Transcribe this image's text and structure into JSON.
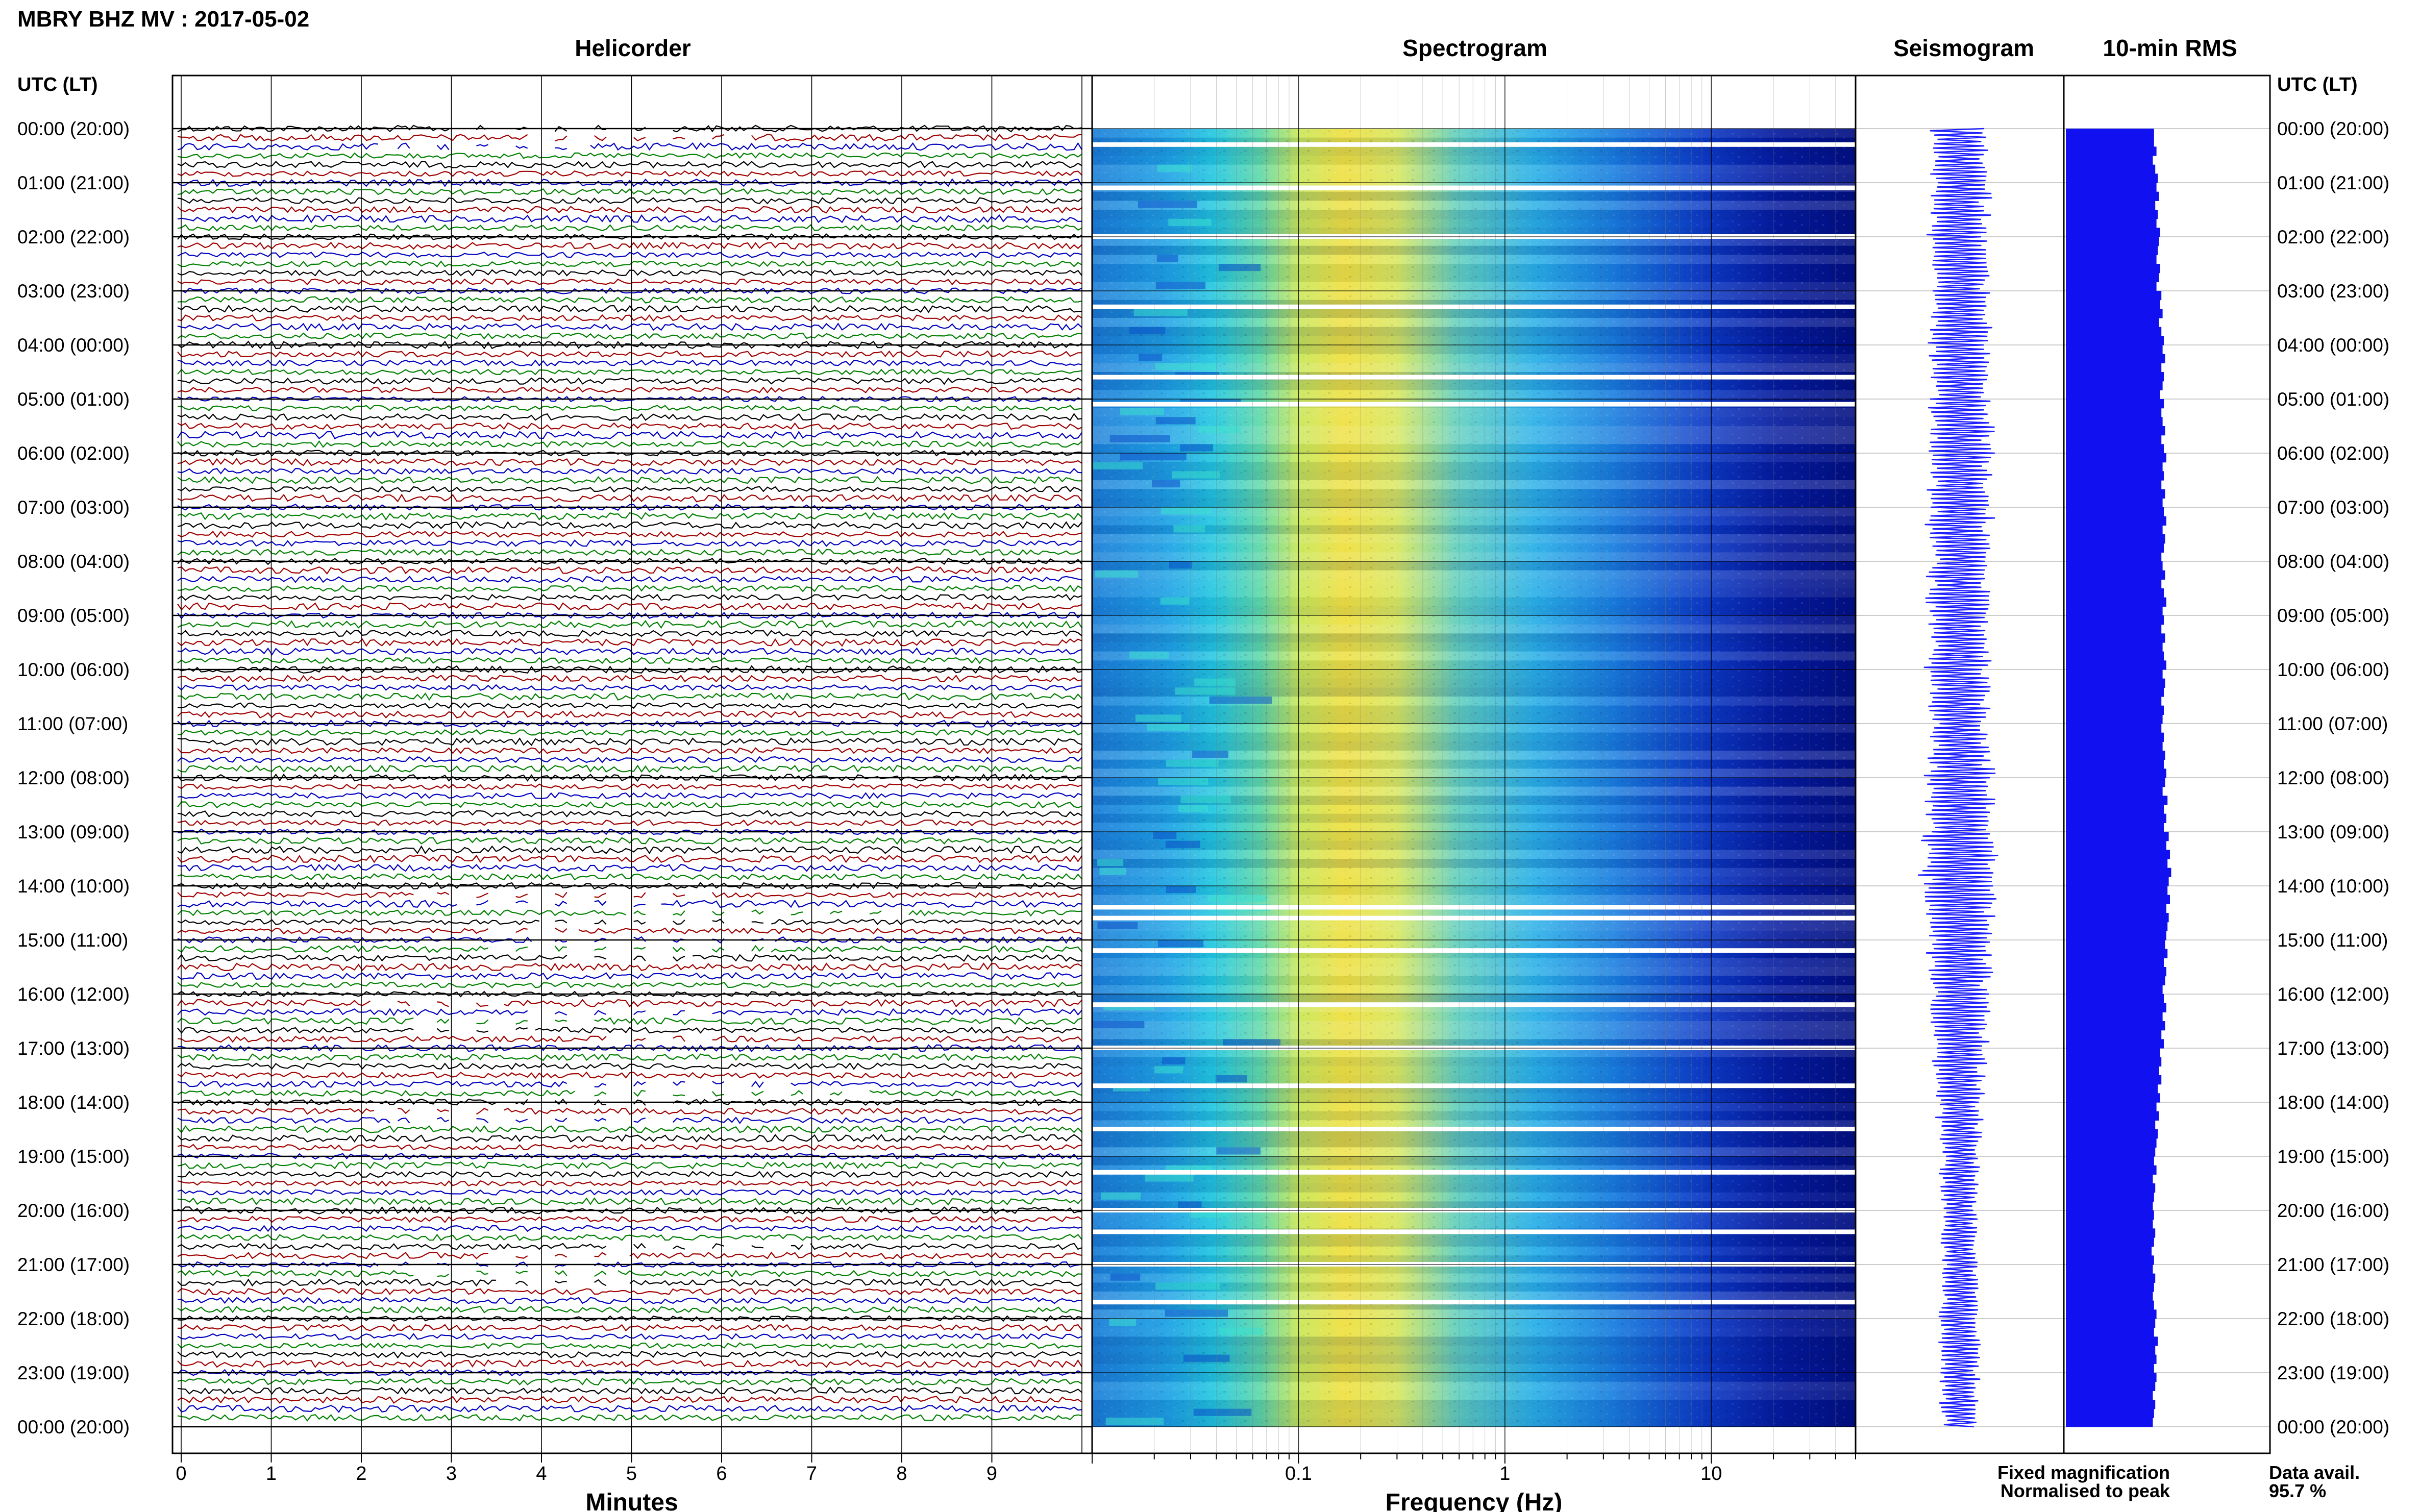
{
  "header": {
    "title": "MBRY BHZ MV : 2017-05-02",
    "utc_label_left": "UTC (LT)",
    "utc_label_right": "UTC (LT)"
  },
  "panels": {
    "helicorder": "Helicorder",
    "spectrogram": "Spectrogram",
    "seismogram": "Seismogram",
    "rms": "10-min RMS"
  },
  "time_labels": [
    "00:00 (20:00)",
    "01:00 (21:00)",
    "02:00 (22:00)",
    "03:00 (23:00)",
    "04:00 (00:00)",
    "05:00 (01:00)",
    "06:00 (02:00)",
    "07:00 (03:00)",
    "08:00 (04:00)",
    "09:00 (05:00)",
    "10:00 (06:00)",
    "11:00 (07:00)",
    "12:00 (08:00)",
    "13:00 (09:00)",
    "14:00 (10:00)",
    "15:00 (11:00)",
    "16:00 (12:00)",
    "17:00 (13:00)",
    "18:00 (14:00)",
    "19:00 (15:00)",
    "20:00 (16:00)",
    "21:00 (17:00)",
    "22:00 (18:00)",
    "23:00 (19:00)",
    "00:00 (20:00)"
  ],
  "axes": {
    "minutes_label": "Minutes",
    "minutes_ticks": [
      "0",
      "1",
      "2",
      "3",
      "4",
      "5",
      "6",
      "7",
      "8",
      "9"
    ],
    "frequency_label": "Frequency (Hz)",
    "frequency_ticks": [
      "0.1",
      "1",
      "10"
    ]
  },
  "legend": {
    "fixed": "Fixed magnification",
    "fixed_color": "#1010ff",
    "normalised": "Normalised to peak",
    "normalised_color": "#e01010"
  },
  "availability": {
    "label": "Data avail.",
    "value": "95.7 %"
  },
  "colors": {
    "trace_cycle": [
      "#000000",
      "#a00000",
      "#0000c0",
      "#008000"
    ],
    "rms_fill": "#1010f0",
    "seismogram": "#2020ff"
  },
  "chart_data": {
    "type": "heatmap",
    "station": "MBRY BHZ MV",
    "date": "2017-05-02",
    "helicorder": {
      "x_unit": "Minutes",
      "xlim": [
        0,
        10
      ],
      "rows_per_hour": 6,
      "hours": 24,
      "trace_colors": [
        "black",
        "dark red",
        "blue",
        "green"
      ],
      "gaps_approx_utc_hours": [
        0,
        14.5,
        15,
        16.5,
        18,
        21
      ]
    },
    "spectrogram": {
      "x_unit": "Frequency (Hz)",
      "x_scale": "log",
      "xlim": [
        0.01,
        50
      ],
      "peak_energy_hz": [
        0.15,
        0.6
      ],
      "colormap": "jet",
      "gaps_approx_utc_hours": [
        0.3,
        1.1,
        2.0,
        3.3,
        4.6,
        5.1,
        14.4,
        14.6,
        15.2,
        16.2,
        17.0,
        17.7,
        18.5,
        19.3,
        20.0,
        20.4,
        21.0,
        21.7
      ]
    },
    "rms_10min": {
      "unit": "relative",
      "values": [
        0.72,
        0.72,
        0.74,
        0.71,
        0.73,
        0.75,
        0.74,
        0.76,
        0.73,
        0.75,
        0.74,
        0.77,
        0.76,
        0.75,
        0.74,
        0.77,
        0.76,
        0.74,
        0.78,
        0.77,
        0.79,
        0.76,
        0.78,
        0.8,
        0.79,
        0.81,
        0.78,
        0.8,
        0.79,
        0.77,
        0.8,
        0.78,
        0.79,
        0.81,
        0.78,
        0.8,
        0.82,
        0.79,
        0.8,
        0.78,
        0.81,
        0.79,
        0.8,
        0.82,
        0.79,
        0.81,
        0.8,
        0.78,
        0.79,
        0.81,
        0.78,
        0.8,
        0.82,
        0.79,
        0.8,
        0.78,
        0.81,
        0.79,
        0.8,
        0.82,
        0.79,
        0.81,
        0.8,
        0.78,
        0.8,
        0.79,
        0.78,
        0.8,
        0.79,
        0.81,
        0.8,
        0.82,
        0.81,
        0.79,
        0.83,
        0.8,
        0.82,
        0.8,
        0.84,
        0.82,
        0.85,
        0.83,
        0.86,
        0.84,
        0.83,
        0.85,
        0.82,
        0.84,
        0.83,
        0.82,
        0.81,
        0.83,
        0.8,
        0.82,
        0.81,
        0.79,
        0.8,
        0.82,
        0.79,
        0.81,
        0.78,
        0.8,
        0.77,
        0.78,
        0.76,
        0.78,
        0.75,
        0.77,
        0.74,
        0.76,
        0.73,
        0.75,
        0.74,
        0.73,
        0.72,
        0.74,
        0.71,
        0.73,
        0.72,
        0.71,
        0.72,
        0.71,
        0.73,
        0.72,
        0.7,
        0.72,
        0.71,
        0.73,
        0.72,
        0.71,
        0.72,
        0.74,
        0.73,
        0.72,
        0.75,
        0.73,
        0.74,
        0.72,
        0.74,
        0.73,
        0.71,
        0.73,
        0.72,
        0.71
      ]
    },
    "seismogram": {
      "relative_amplitude_per_10min": [
        0.22,
        0.2,
        0.23,
        0.19,
        0.21,
        0.24,
        0.22,
        0.26,
        0.2,
        0.23,
        0.21,
        0.25,
        0.22,
        0.2,
        0.21,
        0.24,
        0.22,
        0.2,
        0.23,
        0.21,
        0.25,
        0.22,
        0.24,
        0.26,
        0.23,
        0.25,
        0.21,
        0.24,
        0.22,
        0.2,
        0.24,
        0.21,
        0.23,
        0.26,
        0.22,
        0.24,
        0.28,
        0.22,
        0.24,
        0.21,
        0.25,
        0.22,
        0.23,
        0.26,
        0.22,
        0.24,
        0.23,
        0.2,
        0.22,
        0.25,
        0.21,
        0.23,
        0.26,
        0.22,
        0.24,
        0.21,
        0.25,
        0.22,
        0.23,
        0.27,
        0.22,
        0.25,
        0.23,
        0.21,
        0.24,
        0.22,
        0.21,
        0.24,
        0.22,
        0.25,
        0.23,
        0.27,
        0.25,
        0.22,
        0.28,
        0.24,
        0.26,
        0.23,
        0.29,
        0.26,
        0.3,
        0.27,
        0.31,
        0.28,
        0.26,
        0.29,
        0.25,
        0.27,
        0.26,
        0.24,
        0.23,
        0.26,
        0.22,
        0.25,
        0.23,
        0.21,
        0.22,
        0.25,
        0.21,
        0.24,
        0.2,
        0.22,
        0.19,
        0.21,
        0.18,
        0.2,
        0.17,
        0.19,
        0.16,
        0.18,
        0.15,
        0.17,
        0.16,
        0.15,
        0.14,
        0.16,
        0.13,
        0.15,
        0.14,
        0.13,
        0.14,
        0.13,
        0.15,
        0.14,
        0.12,
        0.14,
        0.13,
        0.15,
        0.14,
        0.13,
        0.14,
        0.16,
        0.15,
        0.14,
        0.17,
        0.15,
        0.16,
        0.14,
        0.16,
        0.15,
        0.13,
        0.15,
        0.14,
        0.13
      ]
    }
  }
}
